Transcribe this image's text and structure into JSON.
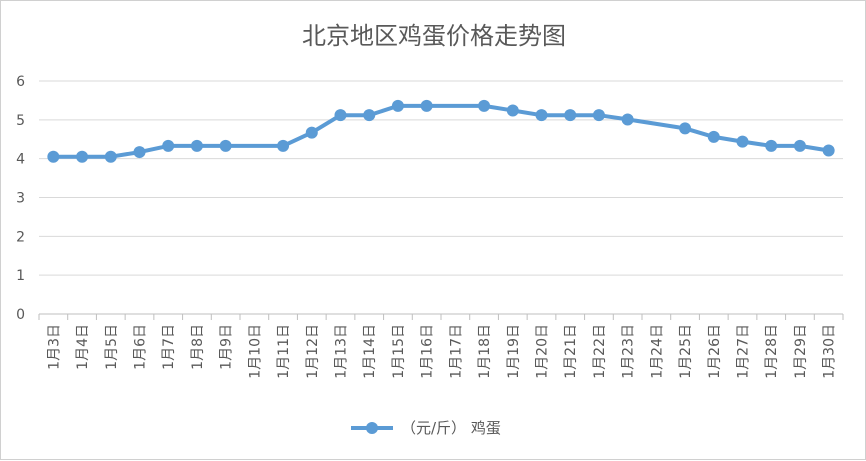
{
  "chart_data": {
    "type": "line",
    "title": "北京地区鸡蛋价格走势图",
    "xlabel": "",
    "ylabel": "",
    "ylim": [
      0,
      6
    ],
    "yticks": [
      "0",
      "1",
      "2",
      "3",
      "4",
      "5",
      "6"
    ],
    "grid": true,
    "legend_position": "bottom",
    "colors": {
      "series": "#5B9BD5",
      "grid": "#d9d9d9",
      "axis": "#bfbfbf",
      "text": "#595959"
    },
    "categories": [
      "1月3日",
      "1月4日",
      "1月5日",
      "1月6日",
      "1月7日",
      "1月8日",
      "1月9日",
      "1月10日",
      "1月11日",
      "1月12日",
      "1月13日",
      "1月14日",
      "1月15日",
      "1月16日",
      "1月17日",
      "1月18日",
      "1月19日",
      "1月20日",
      "1月21日",
      "1月22日",
      "1月23日",
      "1月24日",
      "1月25日",
      "1月26日",
      "1月27日",
      "1月28日",
      "1月29日",
      "1月30日"
    ],
    "series": [
      {
        "name": "（元/斤） 鸡蛋",
        "values": [
          4.05,
          4.05,
          4.05,
          4.17,
          4.33,
          4.33,
          4.33,
          null,
          4.33,
          4.67,
          5.12,
          5.12,
          5.36,
          5.36,
          null,
          5.36,
          5.24,
          5.12,
          5.12,
          5.12,
          5.01,
          null,
          4.78,
          4.56,
          4.44,
          4.33,
          4.33,
          4.21
        ]
      }
    ]
  }
}
